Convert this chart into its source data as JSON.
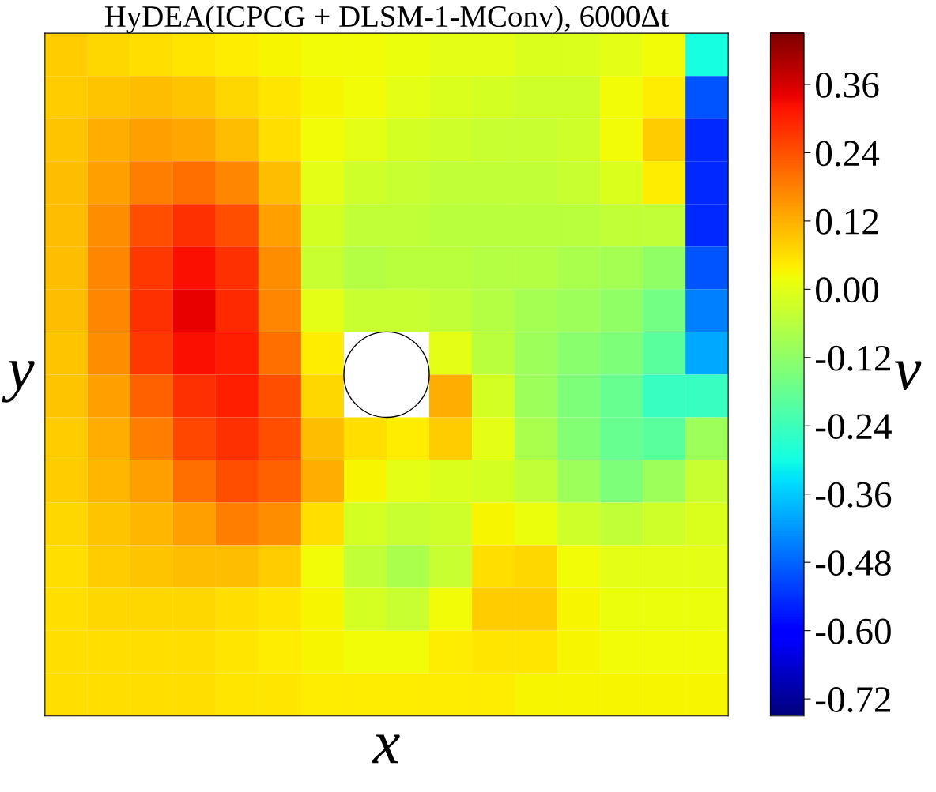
{
  "chart_data": {
    "type": "heatmap",
    "title": "HyDEA(ICPCG + DLSM-1-MConv), 6000Δt",
    "xlabel": "x",
    "ylabel": "y",
    "clabel": "v",
    "tick_labels": false,
    "categories": [
      null,
      null,
      null,
      null,
      null,
      null,
      null,
      null,
      null,
      null,
      null,
      null,
      null,
      null,
      null,
      null
    ],
    "y_categories": [
      null,
      null,
      null,
      null,
      null,
      null,
      null,
      null,
      null,
      null,
      null,
      null,
      null,
      null,
      null,
      null
    ],
    "clim": [
      -0.75,
      0.45
    ],
    "cticks": [
      0.36,
      0.24,
      0.12,
      {
        "value": 0,
        "label": "0.00"
      },
      -0.12,
      -0.24,
      -0.36,
      -0.48,
      {
        "value": -0.6,
        "label": "-0.60"
      },
      -0.72
    ],
    "cells": [
      [
        0.08,
        0.07,
        0.06,
        0.05,
        0.04,
        0.03,
        0.02,
        0.02,
        0.01,
        0.0,
        0.0,
        -0.01,
        -0.01,
        0.0,
        0.02,
        -0.3
      ],
      [
        0.08,
        0.09,
        0.1,
        0.09,
        0.07,
        0.05,
        0.03,
        0.02,
        0.0,
        -0.01,
        -0.02,
        -0.03,
        -0.03,
        0.02,
        0.04,
        -0.5
      ],
      [
        0.09,
        0.12,
        0.14,
        0.13,
        0.1,
        0.06,
        0.02,
        0.0,
        -0.02,
        -0.03,
        -0.04,
        -0.04,
        -0.03,
        0.02,
        0.08,
        -0.55
      ],
      [
        0.1,
        0.14,
        0.18,
        0.2,
        0.17,
        0.1,
        0.0,
        -0.03,
        -0.04,
        -0.05,
        -0.05,
        -0.05,
        -0.04,
        -0.01,
        0.04,
        -0.55
      ],
      [
        0.1,
        0.16,
        0.24,
        0.28,
        0.24,
        0.14,
        -0.02,
        -0.05,
        -0.05,
        -0.06,
        -0.06,
        -0.06,
        -0.06,
        -0.05,
        -0.05,
        -0.55
      ],
      [
        0.1,
        0.17,
        0.27,
        0.32,
        0.28,
        0.16,
        -0.04,
        -0.07,
        -0.06,
        -0.06,
        -0.07,
        -0.07,
        -0.08,
        -0.09,
        -0.12,
        -0.5
      ],
      [
        0.1,
        0.17,
        0.28,
        0.34,
        0.29,
        0.17,
        0.0,
        -0.04,
        -0.04,
        -0.05,
        -0.07,
        -0.09,
        -0.1,
        -0.12,
        -0.16,
        -0.45
      ],
      [
        0.09,
        0.16,
        0.27,
        0.32,
        0.3,
        0.2,
        0.04,
        null,
        null,
        0.0,
        -0.06,
        -0.1,
        -0.13,
        -0.15,
        -0.2,
        -0.4
      ],
      [
        0.09,
        0.14,
        0.22,
        0.28,
        0.3,
        0.24,
        0.07,
        null,
        null,
        0.12,
        -0.02,
        -0.1,
        -0.15,
        -0.18,
        -0.25,
        -0.25
      ],
      [
        0.08,
        0.12,
        0.18,
        0.25,
        0.28,
        0.24,
        0.1,
        0.06,
        0.04,
        0.08,
        0.0,
        -0.08,
        -0.14,
        -0.18,
        -0.2,
        -0.1
      ],
      [
        0.08,
        0.11,
        0.14,
        0.2,
        0.24,
        0.22,
        0.12,
        0.03,
        0.0,
        -0.01,
        -0.02,
        -0.05,
        -0.1,
        -0.15,
        -0.1,
        -0.04
      ],
      [
        0.07,
        0.09,
        0.11,
        0.14,
        0.18,
        0.16,
        0.06,
        -0.02,
        -0.04,
        -0.03,
        0.03,
        0.01,
        -0.03,
        -0.05,
        -0.03,
        -0.01
      ],
      [
        0.06,
        0.08,
        0.09,
        0.1,
        0.1,
        0.08,
        0.02,
        -0.05,
        -0.08,
        -0.04,
        0.06,
        0.07,
        0.02,
        0.0,
        0.0,
        0.0
      ],
      [
        0.06,
        0.07,
        0.07,
        0.07,
        0.06,
        0.05,
        0.03,
        -0.02,
        -0.04,
        0.02,
        0.08,
        0.08,
        0.03,
        0.01,
        0.01,
        0.01
      ],
      [
        0.06,
        0.06,
        0.06,
        0.06,
        0.05,
        0.04,
        0.03,
        0.02,
        0.02,
        0.04,
        0.05,
        0.05,
        0.03,
        0.02,
        0.02,
        0.02
      ],
      [
        0.06,
        0.06,
        0.06,
        0.06,
        0.05,
        0.05,
        0.04,
        0.04,
        0.04,
        0.04,
        0.04,
        0.03,
        0.03,
        0.03,
        0.03,
        0.03
      ]
    ]
  }
}
